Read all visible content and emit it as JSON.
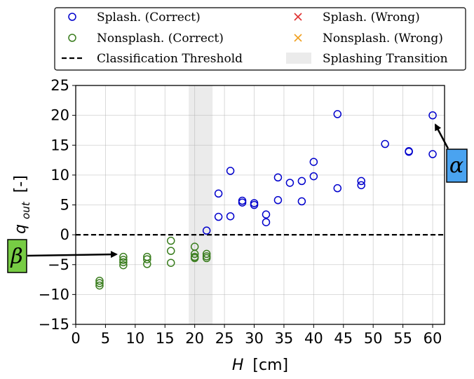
{
  "chart_data": {
    "type": "scatter",
    "xlabel_main": "H",
    "xlabel_unit": "[cm]",
    "ylabel_main": "q",
    "ylabel_sub": "out",
    "ylabel_unit": "[-]",
    "xlim": [
      0,
      62
    ],
    "ylim": [
      -15,
      25
    ],
    "xticks": [
      0,
      5,
      10,
      15,
      20,
      25,
      30,
      35,
      40,
      45,
      50,
      55,
      60
    ],
    "yticks": [
      25,
      20,
      15,
      10,
      5,
      0,
      -5,
      -10,
      -15
    ],
    "ytick_labels": [
      "25",
      "20",
      "15",
      "10",
      "5",
      "0",
      "−10",
      "−15"
    ],
    "ytick_labels_full": [
      "25",
      "20",
      "15",
      "10",
      "5",
      "0",
      "−5",
      "−10",
      "−15"
    ],
    "grid": true,
    "threshold": {
      "y": 0,
      "label": "Classification Threshold",
      "color": "#000000"
    },
    "transition_band": {
      "x": [
        19,
        23
      ],
      "label": "Splashing Transition",
      "color": "#ebebeb"
    },
    "legend": {
      "placement": "top-center",
      "entries": [
        {
          "label": "Splash. (Correct)",
          "marker": "circle",
          "color": "#0000cc"
        },
        {
          "label": "Splash. (Wrong)",
          "marker": "x",
          "color": "#e03030"
        },
        {
          "label": "Nonsplash. (Correct)",
          "marker": "circle",
          "color": "#3a7d1e"
        },
        {
          "label": "Nonsplash. (Wrong)",
          "marker": "x",
          "color": "#f0a020"
        },
        {
          "label": "Classification Threshold",
          "marker": "dashed-line",
          "color": "#000000"
        },
        {
          "label": "Splashing Transition",
          "marker": "band",
          "color": "#ebebeb"
        }
      ]
    },
    "series": [
      {
        "name": "Splash. (Correct)",
        "color": "#0000cc",
        "points": [
          [
            22,
            0.7
          ],
          [
            24,
            3.0
          ],
          [
            24,
            6.9
          ],
          [
            26,
            3.1
          ],
          [
            26,
            10.7
          ],
          [
            28,
            5.4
          ],
          [
            28,
            5.7
          ],
          [
            30,
            5.0
          ],
          [
            30,
            5.3
          ],
          [
            32,
            2.1
          ],
          [
            32,
            3.4
          ],
          [
            34,
            5.8
          ],
          [
            34,
            9.6
          ],
          [
            36,
            8.7
          ],
          [
            38,
            5.6
          ],
          [
            38,
            9.0
          ],
          [
            40,
            9.8
          ],
          [
            40,
            12.2
          ],
          [
            44,
            20.2
          ],
          [
            44,
            7.8
          ],
          [
            48,
            9.0
          ],
          [
            48,
            8.3
          ],
          [
            52,
            15.2
          ],
          [
            56,
            13.9
          ],
          [
            56,
            14.0
          ],
          [
            60,
            20.0
          ],
          [
            60,
            13.5
          ]
        ]
      },
      {
        "name": "Nonsplash. (Correct)",
        "color": "#3a7d1e",
        "points": [
          [
            4,
            -7.7
          ],
          [
            4,
            -8.1
          ],
          [
            4,
            -8.5
          ],
          [
            8,
            -3.7
          ],
          [
            8,
            -4.2
          ],
          [
            8,
            -4.6
          ],
          [
            8,
            -5.1
          ],
          [
            12,
            -3.7
          ],
          [
            12,
            -4.1
          ],
          [
            12,
            -4.9
          ],
          [
            16,
            -1.0
          ],
          [
            16,
            -2.7
          ],
          [
            16,
            -4.7
          ],
          [
            20,
            -2.0
          ],
          [
            20,
            -3.2
          ],
          [
            20,
            -3.7
          ],
          [
            20,
            -3.9
          ],
          [
            22,
            -3.2
          ],
          [
            22,
            -3.6
          ],
          [
            22,
            -3.9
          ]
        ]
      }
    ],
    "annotations": [
      {
        "label": "α",
        "points_to": [
          60,
          20
        ],
        "color": "#4aa3f0"
      },
      {
        "label": "β",
        "points_to": [
          7,
          -3.5
        ],
        "color": "#77cc44"
      }
    ]
  }
}
